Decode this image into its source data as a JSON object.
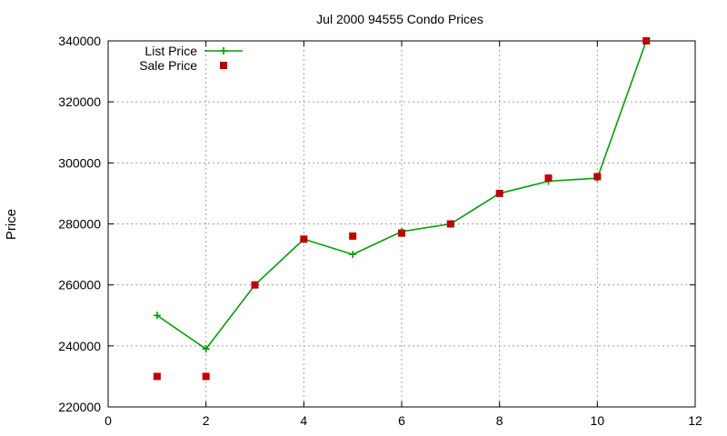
{
  "chart_data": {
    "type": "line",
    "title": "Jul 2000 94555 Condo Prices",
    "xlabel": "",
    "ylabel": "Price",
    "xlim": [
      0,
      12
    ],
    "ylim": [
      220000,
      340000
    ],
    "xticks": [
      0,
      2,
      4,
      6,
      8,
      10,
      12
    ],
    "yticks": [
      220000,
      240000,
      260000,
      280000,
      300000,
      320000,
      340000
    ],
    "grid": true,
    "legend": "top-left",
    "series": [
      {
        "name": "List Price",
        "style": "line+cross",
        "color": "#00a000",
        "x": [
          1,
          2,
          3,
          4,
          5,
          6,
          7,
          8,
          9,
          10,
          11
        ],
        "y": [
          250000,
          239000,
          260000,
          275000,
          270000,
          277500,
          280000,
          290000,
          294000,
          295000,
          340000
        ]
      },
      {
        "name": "Sale Price",
        "style": "square",
        "color": "#c00000",
        "x": [
          1,
          2,
          3,
          4,
          5,
          6,
          7,
          8,
          9,
          10,
          11
        ],
        "y": [
          230000,
          230000,
          260000,
          275000,
          276000,
          277000,
          280000,
          290000,
          295000,
          295500,
          340000
        ]
      }
    ]
  }
}
